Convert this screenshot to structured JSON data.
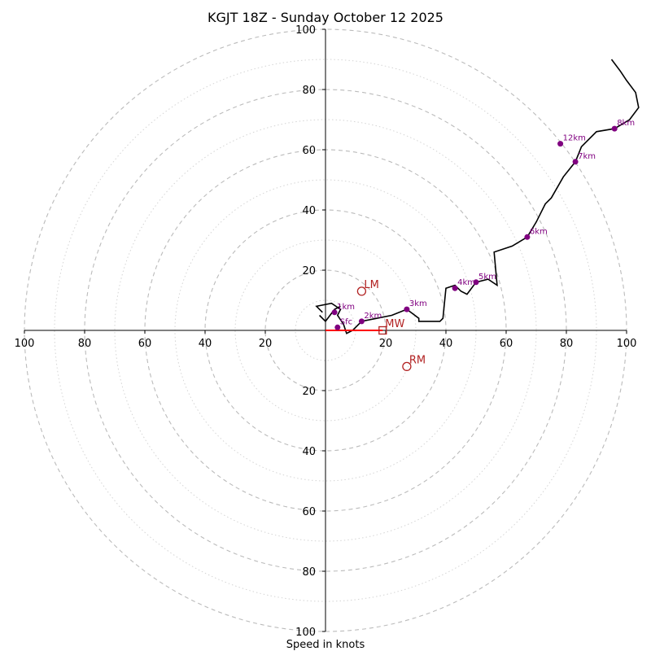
{
  "chart_data": {
    "type": "hodograph",
    "title": "KGJT 18Z - Sunday October 12 2025",
    "xlabel": "Speed in knots",
    "max_speed": 100,
    "ring_step": 10,
    "axis_ticks": [
      "100",
      "80",
      "60",
      "40",
      "20",
      "20",
      "40",
      "60",
      "80",
      "100"
    ],
    "axis_tick_values": [
      -100,
      -80,
      -60,
      -40,
      -20,
      20,
      40,
      60,
      80,
      100
    ],
    "y_axis_ticks": [
      "100",
      "80",
      "60",
      "40",
      "20",
      "20",
      "40",
      "60",
      "80",
      "100"
    ],
    "y_axis_tick_values": [
      100,
      80,
      60,
      40,
      20,
      -20,
      -40,
      -60,
      -80,
      -100
    ],
    "colors": {
      "trace": "#000000",
      "height_points": "#800080",
      "storm_motion": "#b22222",
      "shear_vector": "#ff0000",
      "grid": "#bbbbbb",
      "grid_minor": "#d4d4d4"
    },
    "wind_trace": [
      [
        -1,
        6
      ],
      [
        -3,
        8
      ],
      [
        2,
        9
      ],
      [
        5,
        7
      ],
      [
        4,
        5
      ],
      [
        6,
        2
      ],
      [
        7,
        -1
      ],
      [
        9,
        0
      ],
      [
        12,
        3
      ],
      [
        17,
        4
      ],
      [
        22,
        5
      ],
      [
        27,
        7
      ],
      [
        31,
        4
      ],
      [
        31,
        3
      ],
      [
        38,
        3
      ],
      [
        39,
        4
      ],
      [
        40,
        14
      ],
      [
        43,
        15
      ],
      [
        45,
        13
      ],
      [
        47,
        12
      ],
      [
        50,
        16
      ],
      [
        54,
        17
      ],
      [
        57,
        15
      ],
      [
        56,
        26
      ],
      [
        62,
        28
      ],
      [
        67,
        31
      ],
      [
        70,
        36
      ],
      [
        73,
        42
      ],
      [
        75,
        44
      ],
      [
        79,
        51
      ],
      [
        83,
        56
      ],
      [
        85,
        61
      ],
      [
        90,
        66
      ],
      [
        96,
        67
      ],
      [
        101,
        70
      ],
      [
        104,
        74
      ],
      [
        103,
        79
      ],
      [
        100,
        83
      ],
      [
        98,
        86
      ],
      [
        95,
        90
      ]
    ],
    "tail_segment": [
      [
        -2,
        5
      ],
      [
        0,
        3
      ],
      [
        3,
        7
      ],
      [
        5,
        8
      ]
    ],
    "height_points": [
      {
        "label": "Sfc",
        "u": 4,
        "v": 1
      },
      {
        "label": "1km",
        "u": 3,
        "v": 6
      },
      {
        "label": "2km",
        "u": 12,
        "v": 3
      },
      {
        "label": "3km",
        "u": 27,
        "v": 7
      },
      {
        "label": "4km",
        "u": 43,
        "v": 14
      },
      {
        "label": "5km",
        "u": 50,
        "v": 16
      },
      {
        "label": "6km",
        "u": 67,
        "v": 31
      },
      {
        "label": "7km",
        "u": 83,
        "v": 56
      },
      {
        "label": "8km",
        "u": 96,
        "v": 67
      },
      {
        "label": "12km",
        "u": 78,
        "v": 62
      }
    ],
    "storm_motion": [
      {
        "label": "LM",
        "u": 12,
        "v": 13,
        "marker": "circle"
      },
      {
        "label": "RM",
        "u": 27,
        "v": -12,
        "marker": "circle"
      },
      {
        "label": "MW",
        "u": 19,
        "v": 0,
        "marker": "square"
      }
    ],
    "shear_vector": {
      "u0": 0,
      "v0": 0,
      "u1": 19,
      "v1": 0
    }
  }
}
